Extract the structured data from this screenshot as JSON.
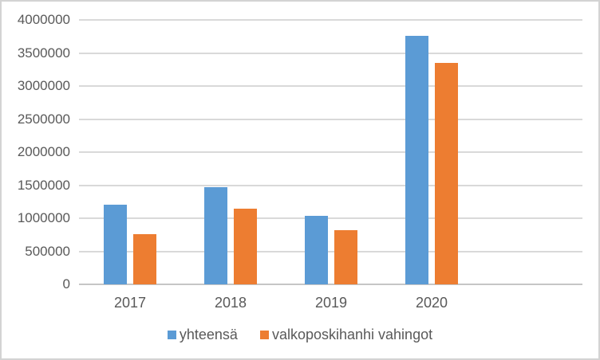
{
  "chart_data": {
    "type": "bar",
    "title": "",
    "xlabel": "",
    "ylabel": "",
    "categories": [
      "2017",
      "2018",
      "2019",
      "2020"
    ],
    "series": [
      {
        "name": "yhteensä",
        "color": "#5B9BD5",
        "values": [
          1210000,
          1470000,
          1040000,
          3760000
        ]
      },
      {
        "name": "valkoposkihanhi vahingot",
        "color": "#ED7D31",
        "values": [
          760000,
          1140000,
          820000,
          3350000
        ]
      }
    ],
    "ylim": [
      0,
      4000000
    ],
    "ytick_step": 500000,
    "y_tick_labels": [
      "0",
      "500000",
      "1000000",
      "1500000",
      "2000000",
      "2500000",
      "3000000",
      "3500000",
      "4000000"
    ],
    "grid": "horizontal-only",
    "legend_position": "bottom-center",
    "colors": {
      "gridline": "#D9D9D9",
      "axis_line": "#C6C6C6",
      "text": "#595959",
      "frame_border": "#D3D3D3",
      "background": "#FFFFFF"
    }
  }
}
